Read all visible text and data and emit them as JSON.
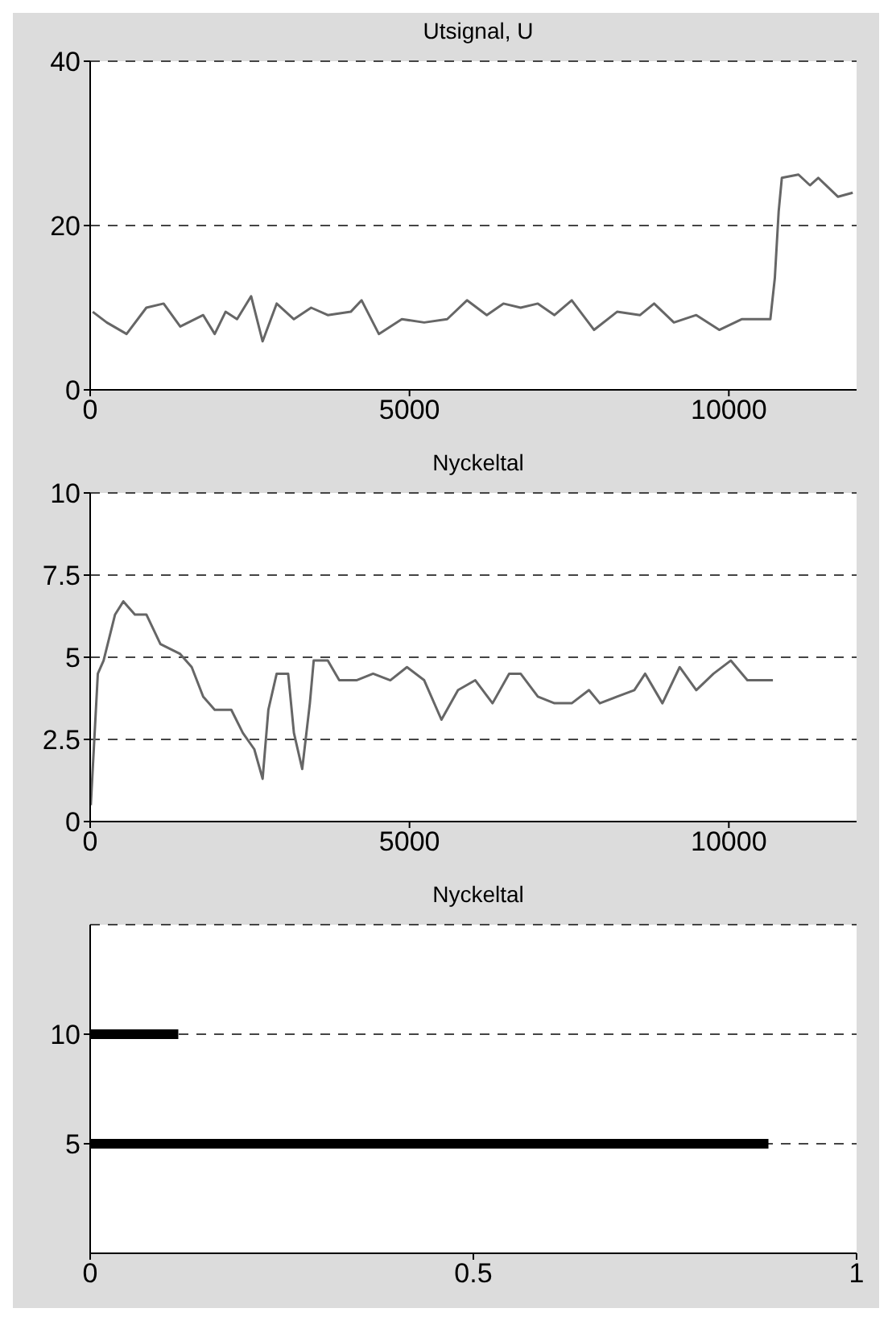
{
  "chart_data": [
    {
      "type": "line",
      "title": "Utsignal, U",
      "xlim": [
        0,
        12000
      ],
      "xticks": [
        0,
        5000,
        10000
      ],
      "ylim": [
        0,
        40
      ],
      "yticks": [
        0,
        20,
        40
      ],
      "grid": "y",
      "line_style": "solid",
      "series": [
        {
          "color": "#666666",
          "x": [
            40,
            260,
            570,
            880,
            1150,
            1410,
            1770,
            1950,
            2120,
            2300,
            2520,
            2700,
            2920,
            3190,
            3460,
            3720,
            4080,
            4250,
            4520,
            4880,
            5230,
            5590,
            5900,
            6210,
            6470,
            6740,
            7010,
            7270,
            7540,
            7890,
            8250,
            8610,
            8830,
            9140,
            9490,
            9850,
            10200,
            10650,
            10720,
            10780,
            10830,
            11090,
            11270,
            11400,
            11710,
            11940
          ],
          "values": [
            9.5,
            8.2,
            6.8,
            10,
            10.5,
            7.7,
            9.1,
            6.8,
            9.5,
            8.6,
            11.4,
            5.9,
            10.5,
            8.6,
            10,
            9.1,
            9.5,
            10.9,
            6.8,
            8.6,
            8.2,
            8.6,
            10.9,
            9.1,
            10.5,
            10,
            10.5,
            9.1,
            10.9,
            7.3,
            9.5,
            9.1,
            10.5,
            8.2,
            9.1,
            7.3,
            8.6,
            8.6,
            13.6,
            21.7,
            25.8,
            26.2,
            24.9,
            25.8,
            23.5,
            24
          ]
        }
      ]
    },
    {
      "type": "line",
      "title": "Nyckeltal",
      "xlim": [
        0,
        12000
      ],
      "xticks": [
        0,
        5000,
        10000
      ],
      "ylim": [
        0,
        10
      ],
      "yticks": [
        0,
        2.5,
        5,
        7.5,
        10
      ],
      "grid": "y",
      "line_style": "solid",
      "series": [
        {
          "color": "#666666",
          "x": [
            10,
            120,
            210,
            390,
            520,
            700,
            880,
            1100,
            1410,
            1590,
            1770,
            1950,
            2210,
            2390,
            2570,
            2700,
            2790,
            2920,
            3100,
            3190,
            3320,
            3440,
            3500,
            3720,
            3900,
            4170,
            4430,
            4700,
            4960,
            5230,
            5500,
            5760,
            6030,
            6300,
            6560,
            6740,
            7010,
            7270,
            7540,
            7810,
            7980,
            8250,
            8520,
            8690,
            8960,
            9230,
            9490,
            9760,
            10030,
            10290,
            10690
          ],
          "values": [
            0.5,
            4.5,
            4.9,
            6.3,
            6.7,
            6.3,
            6.3,
            5.4,
            5.1,
            4.7,
            3.8,
            3.4,
            3.4,
            2.7,
            2.2,
            1.3,
            3.4,
            4.5,
            4.5,
            2.7,
            1.6,
            3.6,
            4.9,
            4.9,
            4.3,
            4.3,
            4.5,
            4.3,
            4.7,
            4.3,
            3.1,
            4,
            4.3,
            3.6,
            4.5,
            4.5,
            3.8,
            3.6,
            3.6,
            4,
            3.6,
            3.8,
            4,
            4.5,
            3.6,
            4.7,
            4,
            4.5,
            4.9,
            4.3,
            4.3
          ]
        }
      ]
    },
    {
      "type": "line",
      "title": "Nyckeltal",
      "xlim": [
        0,
        1
      ],
      "xticks": [
        0,
        0.5,
        1
      ],
      "ylim": [
        0,
        15
      ],
      "yticks": [
        5,
        10
      ],
      "grid": "y",
      "line_style": "solid",
      "series": [
        {
          "color": "#000000",
          "x": [
            0,
            0.115
          ],
          "values": [
            10,
            10
          ]
        },
        {
          "color": "#000000",
          "x": [
            0,
            0.885
          ],
          "values": [
            5,
            5
          ]
        }
      ]
    }
  ]
}
